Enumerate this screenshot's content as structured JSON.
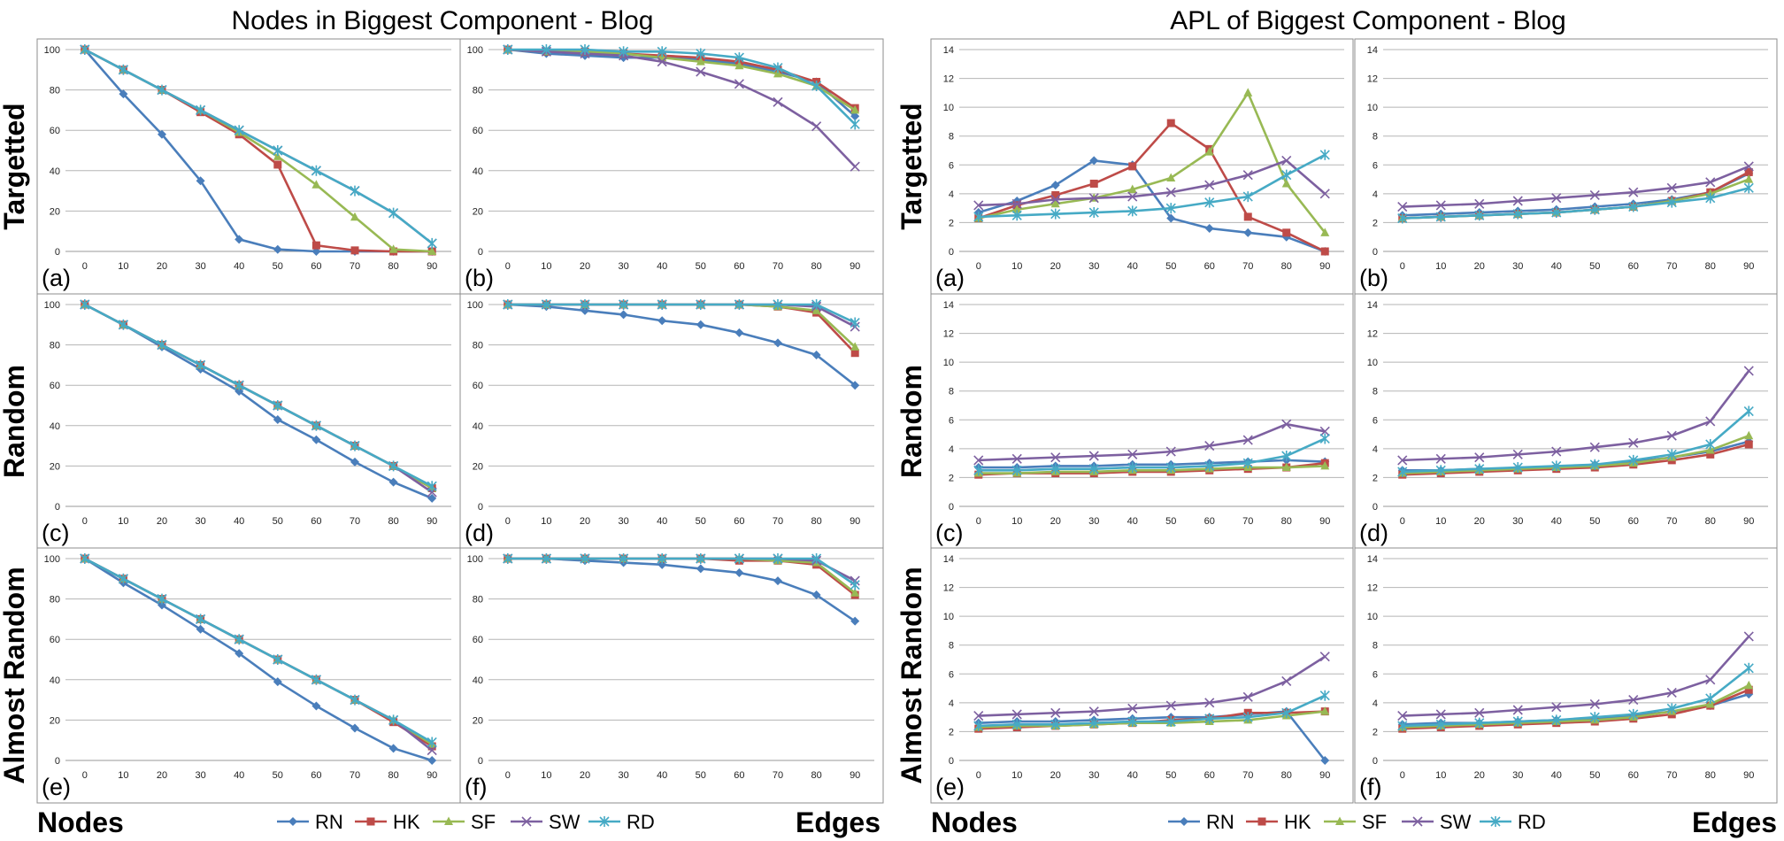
{
  "x_ticks": [
    "0",
    "10",
    "20",
    "30",
    "40",
    "50",
    "60",
    "70",
    "80",
    "90"
  ],
  "legend": [
    {
      "name": "RN",
      "color": "#4a7ebb",
      "marker": "diamond"
    },
    {
      "name": "HK",
      "color": "#be4b48",
      "marker": "square"
    },
    {
      "name": "SF",
      "color": "#98b954",
      "marker": "triangle"
    },
    {
      "name": "SW",
      "color": "#7d60a0",
      "marker": "x"
    },
    {
      "name": "RD",
      "color": "#46aac5",
      "marker": "star"
    }
  ],
  "groups": [
    {
      "title": "Nodes in Biggest Component - Blog",
      "bottom_left": "Nodes",
      "bottom_right": "Edges",
      "row_labels": [
        "Targetted",
        "Random",
        "Almost Random"
      ]
    },
    {
      "title": "APL of Biggest Component - Blog",
      "bottom_left": "Nodes",
      "bottom_right": "Edges",
      "row_labels": [
        "Targetted",
        "Random",
        "Almost Random"
      ]
    }
  ],
  "chart_data": [
    {
      "type": "line",
      "group": 0,
      "panel": "(a)",
      "ylim": [
        0,
        100
      ],
      "yticks": [
        "0",
        "20",
        "40",
        "60",
        "80",
        "100"
      ],
      "series": [
        {
          "name": "RN",
          "values": [
            100,
            78,
            58,
            35,
            6,
            1,
            0,
            0,
            0,
            0
          ]
        },
        {
          "name": "HK",
          "values": [
            100,
            90,
            80,
            69,
            58,
            43,
            3,
            0.5,
            0,
            0
          ]
        },
        {
          "name": "SF",
          "values": [
            100,
            90,
            80,
            70,
            59,
            47,
            33,
            17,
            1,
            0
          ]
        },
        {
          "name": "SW",
          "values": [
            100,
            90,
            80,
            70,
            60,
            50,
            40,
            30,
            19,
            4
          ]
        },
        {
          "name": "RD",
          "values": [
            100,
            90,
            80,
            70,
            60,
            50,
            40,
            30,
            19,
            4
          ]
        }
      ]
    },
    {
      "type": "line",
      "group": 0,
      "panel": "(b)",
      "ylim": [
        0,
        100
      ],
      "yticks": [
        "0",
        "20",
        "40",
        "60",
        "80",
        "100"
      ],
      "series": [
        {
          "name": "RN",
          "values": [
            100,
            98,
            97,
            96,
            96,
            95,
            93,
            89,
            84,
            67
          ]
        },
        {
          "name": "HK",
          "values": [
            100,
            99,
            99,
            98,
            97,
            96,
            94,
            90,
            84,
            71
          ]
        },
        {
          "name": "SF",
          "values": [
            100,
            99,
            99,
            98,
            96,
            94,
            92,
            88,
            82,
            70
          ]
        },
        {
          "name": "SW",
          "values": [
            100,
            99,
            98,
            97,
            94,
            89,
            83,
            74,
            62,
            42
          ]
        },
        {
          "name": "RD",
          "values": [
            100,
            100,
            100,
            99,
            99,
            98,
            96,
            91,
            82,
            63
          ]
        }
      ]
    },
    {
      "type": "line",
      "group": 0,
      "panel": "(c)",
      "ylim": [
        0,
        100
      ],
      "yticks": [
        "0",
        "20",
        "40",
        "60",
        "80",
        "100"
      ],
      "series": [
        {
          "name": "RN",
          "values": [
            100,
            90,
            79,
            68,
            57,
            43,
            33,
            22,
            12,
            4
          ]
        },
        {
          "name": "HK",
          "values": [
            100,
            90,
            80,
            70,
            60,
            50,
            40,
            30,
            20,
            9
          ]
        },
        {
          "name": "SF",
          "values": [
            100,
            90,
            80,
            70,
            60,
            50,
            40,
            30,
            20,
            9
          ]
        },
        {
          "name": "SW",
          "values": [
            100,
            90,
            80,
            70,
            60,
            50,
            40,
            30,
            20,
            7
          ]
        },
        {
          "name": "RD",
          "values": [
            100,
            90,
            80,
            70,
            60,
            50,
            40,
            30,
            20,
            10
          ]
        }
      ]
    },
    {
      "type": "line",
      "group": 0,
      "panel": "(d)",
      "ylim": [
        0,
        100
      ],
      "yticks": [
        "0",
        "20",
        "40",
        "60",
        "80",
        "100"
      ],
      "series": [
        {
          "name": "RN",
          "values": [
            100,
            99,
            97,
            95,
            92,
            90,
            86,
            81,
            75,
            60
          ]
        },
        {
          "name": "HK",
          "values": [
            100,
            100,
            100,
            100,
            100,
            100,
            100,
            99,
            96,
            76
          ]
        },
        {
          "name": "SF",
          "values": [
            100,
            100,
            100,
            100,
            100,
            100,
            100,
            99,
            97,
            79
          ]
        },
        {
          "name": "SW",
          "values": [
            100,
            100,
            100,
            100,
            100,
            100,
            100,
            100,
            99,
            89
          ]
        },
        {
          "name": "RD",
          "values": [
            100,
            100,
            100,
            100,
            100,
            100,
            100,
            100,
            100,
            91
          ]
        }
      ]
    },
    {
      "type": "line",
      "group": 0,
      "panel": "(e)",
      "ylim": [
        0,
        100
      ],
      "yticks": [
        "0",
        "20",
        "40",
        "60",
        "80",
        "100"
      ],
      "series": [
        {
          "name": "RN",
          "values": [
            100,
            88,
            77,
            65,
            53,
            39,
            27,
            16,
            6,
            0
          ]
        },
        {
          "name": "HK",
          "values": [
            100,
            90,
            80,
            70,
            60,
            50,
            40,
            30,
            19,
            7
          ]
        },
        {
          "name": "SF",
          "values": [
            100,
            90,
            80,
            70,
            60,
            50,
            40,
            30,
            20,
            8
          ]
        },
        {
          "name": "SW",
          "values": [
            100,
            90,
            80,
            70,
            60,
            50,
            40,
            30,
            20,
            5
          ]
        },
        {
          "name": "RD",
          "values": [
            100,
            90,
            80,
            70,
            60,
            50,
            40,
            30,
            20,
            9
          ]
        }
      ]
    },
    {
      "type": "line",
      "group": 0,
      "panel": "(f)",
      "ylim": [
        0,
        100
      ],
      "yticks": [
        "0",
        "20",
        "40",
        "60",
        "80",
        "100"
      ],
      "series": [
        {
          "name": "RN",
          "values": [
            100,
            100,
            99,
            98,
            97,
            95,
            93,
            89,
            82,
            69
          ]
        },
        {
          "name": "HK",
          "values": [
            100,
            100,
            100,
            100,
            100,
            100,
            99,
            99,
            97,
            82
          ]
        },
        {
          "name": "SF",
          "values": [
            100,
            100,
            100,
            100,
            100,
            100,
            100,
            99,
            98,
            83
          ]
        },
        {
          "name": "SW",
          "values": [
            100,
            100,
            100,
            100,
            100,
            100,
            100,
            100,
            99,
            89
          ]
        },
        {
          "name": "RD",
          "values": [
            100,
            100,
            100,
            100,
            100,
            100,
            100,
            100,
            100,
            87
          ]
        }
      ]
    },
    {
      "type": "line",
      "group": 1,
      "panel": "(a)",
      "ylim": [
        0,
        14
      ],
      "yticks": [
        "0",
        "2",
        "4",
        "6",
        "8",
        "10",
        "12",
        "14"
      ],
      "series": [
        {
          "name": "RN",
          "values": [
            2.7,
            3.5,
            4.6,
            6.3,
            6,
            2.3,
            1.6,
            1.3,
            1,
            0
          ]
        },
        {
          "name": "HK",
          "values": [
            2.3,
            3.2,
            3.9,
            4.7,
            5.9,
            8.9,
            7.1,
            2.4,
            1.3,
            0
          ]
        },
        {
          "name": "SF",
          "values": [
            2.3,
            2.9,
            3.3,
            3.7,
            4.3,
            5.1,
            6.9,
            11,
            4.7,
            1.3
          ]
        },
        {
          "name": "SW",
          "values": [
            3.2,
            3.3,
            3.6,
            3.7,
            3.8,
            4.1,
            4.6,
            5.3,
            6.3,
            4
          ]
        },
        {
          "name": "RD",
          "values": [
            2.4,
            2.5,
            2.6,
            2.7,
            2.8,
            3,
            3.4,
            3.8,
            5.3,
            6.7
          ]
        }
      ]
    },
    {
      "type": "line",
      "group": 1,
      "panel": "(b)",
      "ylim": [
        0,
        14
      ],
      "yticks": [
        "0",
        "2",
        "4",
        "6",
        "8",
        "10",
        "12",
        "14"
      ],
      "series": [
        {
          "name": "RN",
          "values": [
            2.5,
            2.6,
            2.7,
            2.8,
            2.9,
            3.1,
            3.3,
            3.6,
            4.1,
            5.4
          ]
        },
        {
          "name": "HK",
          "values": [
            2.3,
            2.4,
            2.5,
            2.6,
            2.7,
            2.9,
            3.1,
            3.5,
            4.1,
            5.5
          ]
        },
        {
          "name": "SF",
          "values": [
            2.3,
            2.4,
            2.5,
            2.6,
            2.7,
            2.9,
            3.1,
            3.5,
            4,
            5
          ]
        },
        {
          "name": "SW",
          "values": [
            3.1,
            3.2,
            3.3,
            3.5,
            3.7,
            3.9,
            4.1,
            4.4,
            4.8,
            5.9
          ]
        },
        {
          "name": "RD",
          "values": [
            2.3,
            2.4,
            2.5,
            2.6,
            2.7,
            2.9,
            3.1,
            3.4,
            3.7,
            4.4
          ]
        }
      ]
    },
    {
      "type": "line",
      "group": 1,
      "panel": "(c)",
      "ylim": [
        0,
        14
      ],
      "yticks": [
        "0",
        "2",
        "4",
        "6",
        "8",
        "10",
        "12",
        "14"
      ],
      "series": [
        {
          "name": "RN",
          "values": [
            2.7,
            2.7,
            2.8,
            2.8,
            2.9,
            2.9,
            3,
            3.1,
            3.2,
            3.1
          ]
        },
        {
          "name": "HK",
          "values": [
            2.2,
            2.3,
            2.3,
            2.3,
            2.4,
            2.4,
            2.5,
            2.6,
            2.7,
            3
          ]
        },
        {
          "name": "SF",
          "values": [
            2.3,
            2.3,
            2.4,
            2.4,
            2.5,
            2.5,
            2.6,
            2.7,
            2.7,
            2.8
          ]
        },
        {
          "name": "SW",
          "values": [
            3.2,
            3.3,
            3.4,
            3.5,
            3.6,
            3.8,
            4.2,
            4.6,
            5.7,
            5.2
          ]
        },
        {
          "name": "RD",
          "values": [
            2.5,
            2.5,
            2.6,
            2.6,
            2.7,
            2.7,
            2.8,
            3,
            3.5,
            4.7
          ]
        }
      ]
    },
    {
      "type": "line",
      "group": 1,
      "panel": "(d)",
      "ylim": [
        0,
        14
      ],
      "yticks": [
        "0",
        "2",
        "4",
        "6",
        "8",
        "10",
        "12",
        "14"
      ],
      "series": [
        {
          "name": "RN",
          "values": [
            2.5,
            2.5,
            2.6,
            2.6,
            2.7,
            2.9,
            3.1,
            3.4,
            3.8,
            4.5
          ]
        },
        {
          "name": "HK",
          "values": [
            2.2,
            2.3,
            2.4,
            2.5,
            2.6,
            2.7,
            2.9,
            3.2,
            3.6,
            4.3
          ]
        },
        {
          "name": "SF",
          "values": [
            2.3,
            2.4,
            2.5,
            2.6,
            2.7,
            2.8,
            3,
            3.4,
            3.9,
            4.9
          ]
        },
        {
          "name": "SW",
          "values": [
            3.2,
            3.3,
            3.4,
            3.6,
            3.8,
            4.1,
            4.4,
            4.9,
            5.9,
            9.4
          ]
        },
        {
          "name": "RD",
          "values": [
            2.4,
            2.5,
            2.6,
            2.7,
            2.8,
            2.9,
            3.2,
            3.6,
            4.3,
            6.6
          ]
        }
      ]
    },
    {
      "type": "line",
      "group": 1,
      "panel": "(e)",
      "ylim": [
        0,
        14
      ],
      "yticks": [
        "0",
        "2",
        "4",
        "6",
        "8",
        "10",
        "12",
        "14"
      ],
      "series": [
        {
          "name": "RN",
          "values": [
            2.6,
            2.7,
            2.7,
            2.8,
            2.9,
            3,
            3,
            3.2,
            3.4,
            0
          ]
        },
        {
          "name": "HK",
          "values": [
            2.2,
            2.3,
            2.4,
            2.5,
            2.6,
            2.8,
            2.9,
            3.3,
            3.3,
            3.4
          ]
        },
        {
          "name": "SF",
          "values": [
            2.3,
            2.4,
            2.4,
            2.5,
            2.6,
            2.6,
            2.7,
            2.8,
            3.1,
            3.4
          ]
        },
        {
          "name": "SW",
          "values": [
            3.1,
            3.2,
            3.3,
            3.4,
            3.6,
            3.8,
            4,
            4.4,
            5.5,
            7.2
          ]
        },
        {
          "name": "RD",
          "values": [
            2.4,
            2.5,
            2.5,
            2.6,
            2.7,
            2.7,
            2.9,
            3,
            3.3,
            4.5
          ]
        }
      ]
    },
    {
      "type": "line",
      "group": 1,
      "panel": "(f)",
      "ylim": [
        0,
        14
      ],
      "yticks": [
        "0",
        "2",
        "4",
        "6",
        "8",
        "10",
        "12",
        "14"
      ],
      "series": [
        {
          "name": "RN",
          "values": [
            2.5,
            2.6,
            2.6,
            2.7,
            2.8,
            2.9,
            3.1,
            3.4,
            3.8,
            4.6
          ]
        },
        {
          "name": "HK",
          "values": [
            2.2,
            2.3,
            2.4,
            2.5,
            2.6,
            2.7,
            2.9,
            3.2,
            3.8,
            4.9
          ]
        },
        {
          "name": "SF",
          "values": [
            2.3,
            2.4,
            2.5,
            2.6,
            2.7,
            2.8,
            3,
            3.4,
            3.9,
            5.2
          ]
        },
        {
          "name": "SW",
          "values": [
            3.1,
            3.2,
            3.3,
            3.5,
            3.7,
            3.9,
            4.2,
            4.7,
            5.6,
            8.6
          ]
        },
        {
          "name": "RD",
          "values": [
            2.4,
            2.5,
            2.6,
            2.7,
            2.8,
            3,
            3.2,
            3.6,
            4.3,
            6.4
          ]
        }
      ]
    }
  ]
}
